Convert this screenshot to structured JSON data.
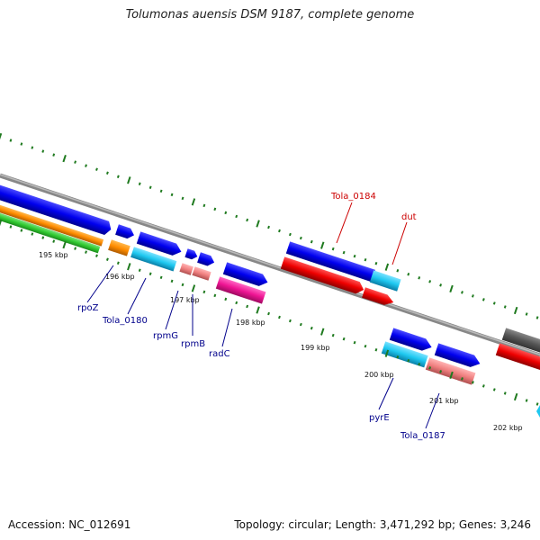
{
  "title": "Tolumonas auensis DSM 9187, complete genome",
  "accession": "Accession: NC_012691",
  "topology": "Topology: circular; Length: 3,471,292 bp; Genes: 3,246",
  "ruler": {
    "labels": [
      "195 kbp",
      "196 kbp",
      "197 kbp",
      "198 kbp",
      "199 kbp",
      "200 kbp",
      "201 kbp",
      "202 kbp"
    ],
    "tick_color": "#1f7a1f"
  },
  "genes": [
    {
      "label": "Tola_0184",
      "color": "#cc0000"
    },
    {
      "label": "dut",
      "color": "#cc0000"
    },
    {
      "label": "rpoZ",
      "color": "#00008b"
    },
    {
      "label": "Tola_0180",
      "color": "#00008b"
    },
    {
      "label": "rpmG",
      "color": "#00008b"
    },
    {
      "label": "rpmB",
      "color": "#00008b"
    },
    {
      "label": "radC",
      "color": "#00008b"
    },
    {
      "label": "pyrE",
      "color": "#00008b"
    },
    {
      "label": "Tola_0187",
      "color": "#00008b"
    }
  ],
  "colors": {
    "cds_blue": "#0000ee",
    "rna_cyan": "#1ec8f0",
    "red": "#ee0000",
    "orange": "#ff8c00",
    "green": "#33cc33",
    "pink": "#ee1493",
    "salmon": "#f08080",
    "dark_gray": "#555555",
    "backbone": "#888888"
  }
}
